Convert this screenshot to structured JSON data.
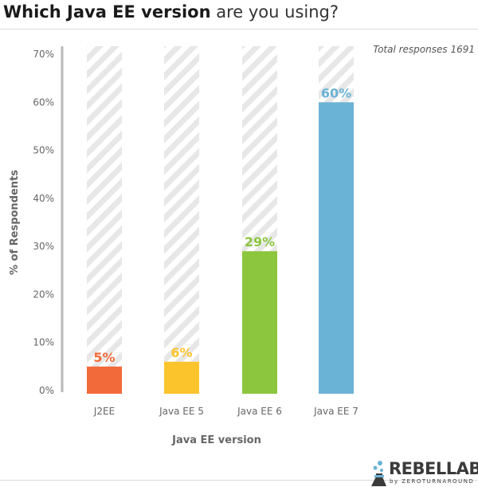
{
  "header": {
    "title_bold": "Which Java EE version",
    "title_light": "are you using?"
  },
  "note": "Total responses 1691",
  "chart_data": {
    "type": "bar",
    "categories": [
      "J2EE",
      "Java EE 5",
      "Java EE 6",
      "Java EE 7"
    ],
    "values": [
      5,
      6,
      29,
      60
    ],
    "data_labels": [
      "5%",
      "6%",
      "29%",
      "60%"
    ],
    "colors": [
      "#f26a3a",
      "#fcc42c",
      "#8cc63f",
      "#6bb3d6"
    ],
    "background_color": "#e7e7e7",
    "xlabel": "Java EE version",
    "ylabel": "% of Respondents",
    "ylim": [
      0,
      70
    ],
    "yticks": [
      0,
      10,
      20,
      30,
      40,
      50,
      60,
      70
    ],
    "ytick_labels": [
      "0%",
      "10%",
      "20%",
      "30%",
      "40%",
      "50%",
      "60%",
      "70%"
    ],
    "grid": false
  },
  "logo": {
    "brand": "REBELLABS",
    "tagline": "by ZEROTURNAROUND"
  }
}
